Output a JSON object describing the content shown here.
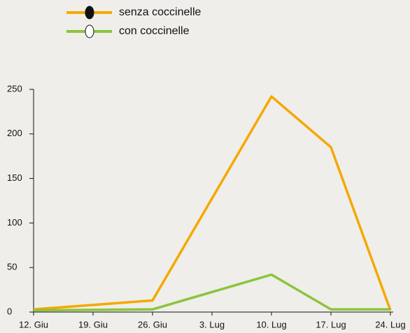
{
  "chart_data": {
    "type": "line",
    "x": [
      0,
      14,
      28,
      35,
      42
    ],
    "series": [
      {
        "name": "senza coccinelle",
        "color": "#f5a800",
        "values": [
          3,
          13,
          242,
          185,
          2
        ]
      },
      {
        "name": "con coccinelle",
        "color": "#8cc43c",
        "values": [
          2,
          3,
          42,
          3,
          3
        ]
      }
    ],
    "xlim": [
      0,
      42
    ],
    "xticks": [
      {
        "value": 0,
        "label": "12. Giu"
      },
      {
        "value": 7,
        "label": "19. Giu"
      },
      {
        "value": 14,
        "label": "26. Giu"
      },
      {
        "value": 21,
        "label": "3. Lug"
      },
      {
        "value": 28,
        "label": "10. Lug"
      },
      {
        "value": 35,
        "label": "17. Lug"
      },
      {
        "value": 42,
        "label": "24. Lug"
      }
    ],
    "ylim": [
      0,
      250
    ],
    "yticks": [
      0,
      50,
      100,
      150,
      200,
      250
    ]
  }
}
